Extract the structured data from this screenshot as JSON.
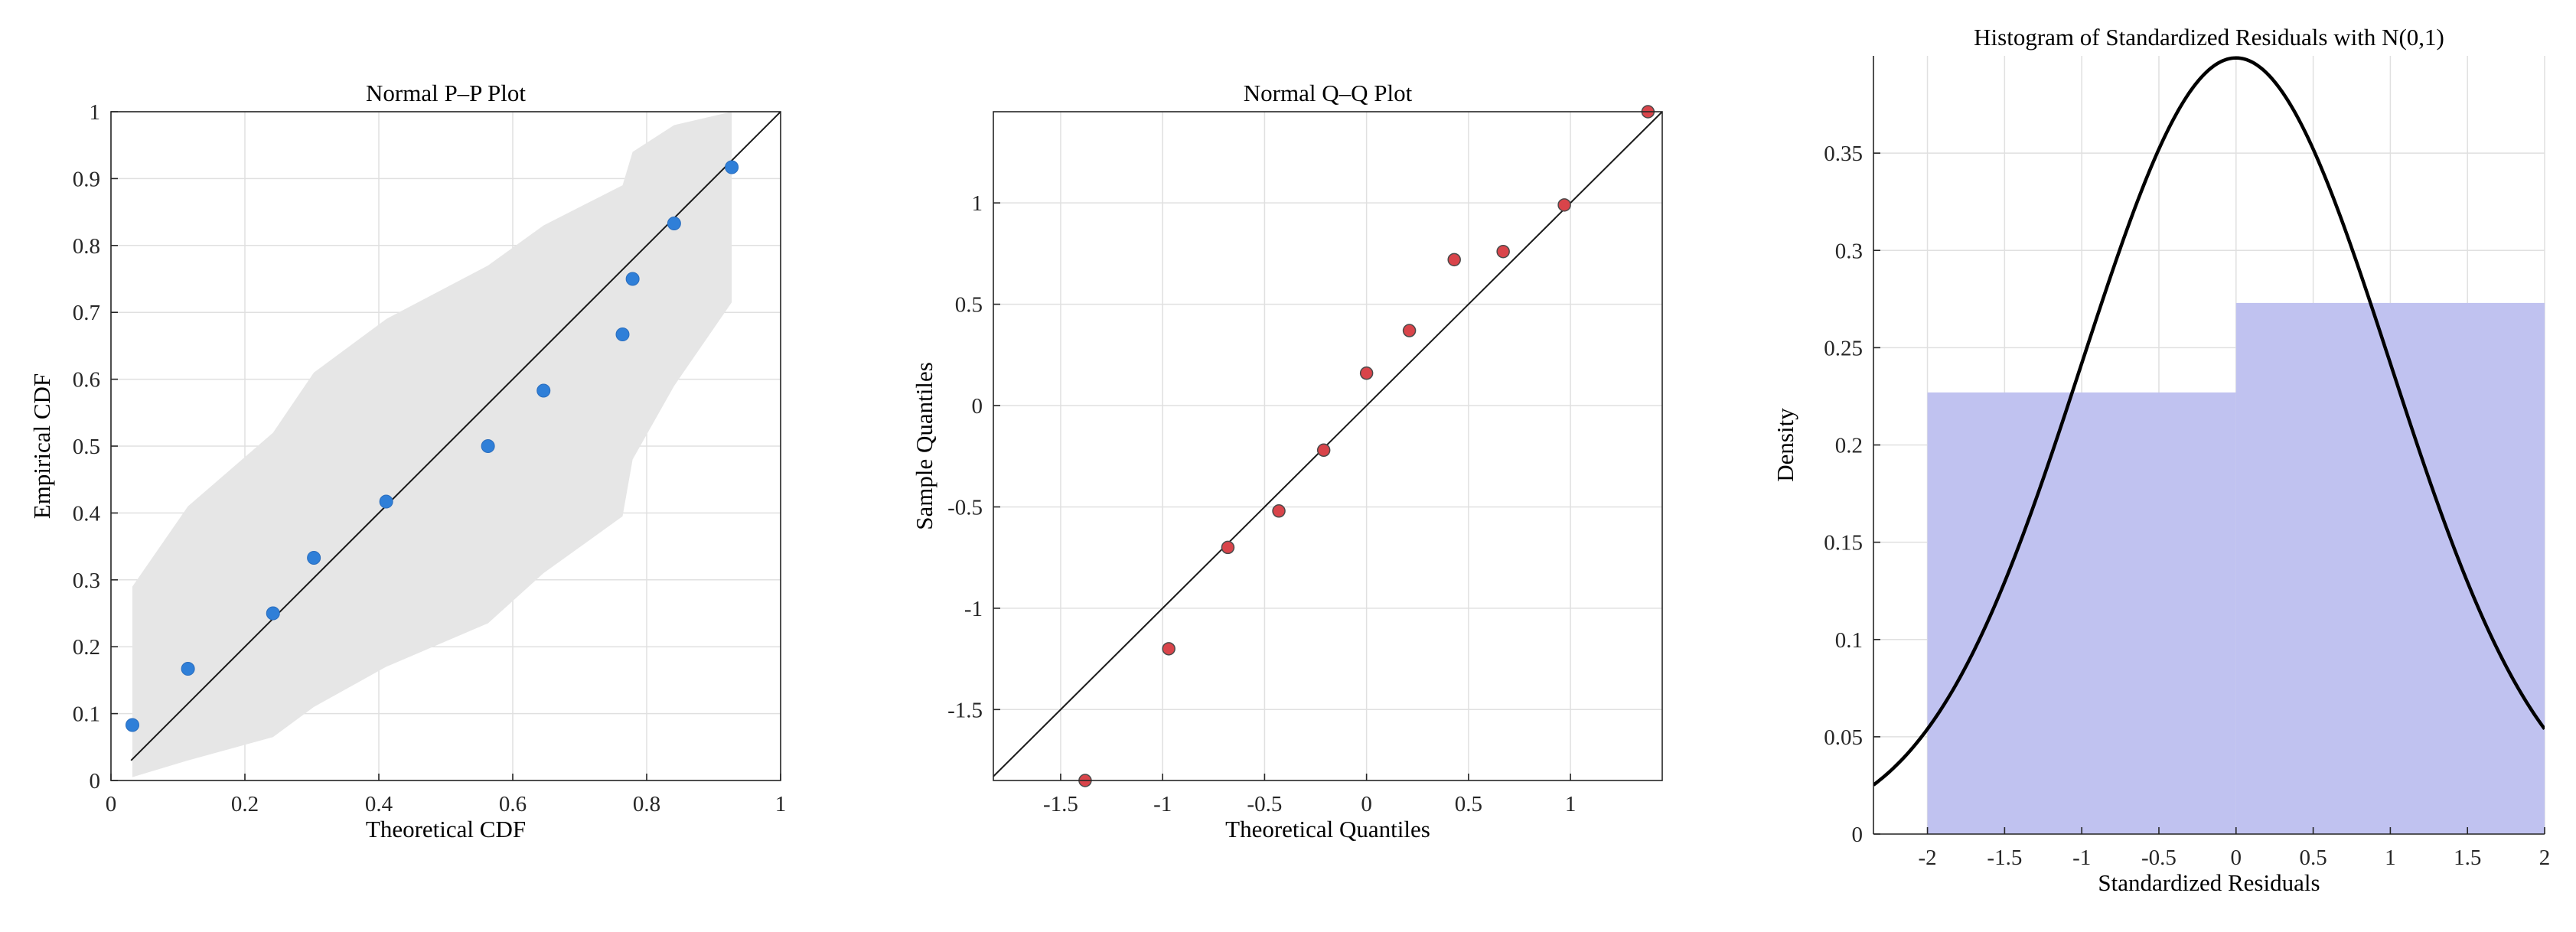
{
  "chart_data": [
    {
      "type": "scatter",
      "title": "Normal P–P Plot",
      "xlabel": "Theoretical CDF",
      "ylabel": "Empirical CDF",
      "xlim": [
        0,
        1
      ],
      "ylim": [
        0,
        1
      ],
      "xticks": [
        "0",
        "0.2",
        "0.4",
        "0.6",
        "0.8",
        "1"
      ],
      "yticks": [
        "0",
        "0.1",
        "0.2",
        "0.3",
        "0.4",
        "0.5",
        "0.6",
        "0.7",
        "0.8",
        "0.9",
        "1"
      ],
      "grid": true,
      "point_color": "#2f7fd8",
      "band_color": "#e6e6e6",
      "reference_line": {
        "x": [
          0.03,
          1.0
        ],
        "y": [
          0.03,
          1.0
        ]
      },
      "points": {
        "x": [
          0.032,
          0.115,
          0.242,
          0.303,
          0.411,
          0.563,
          0.646,
          0.764,
          0.779,
          0.841,
          0.927
        ],
        "y": [
          0.083,
          0.167,
          0.25,
          0.333,
          0.417,
          0.5,
          0.583,
          0.667,
          0.75,
          0.833,
          0.917
        ]
      },
      "band_upper": {
        "x": [
          0.032,
          0.115,
          0.242,
          0.303,
          0.411,
          0.563,
          0.646,
          0.764,
          0.779,
          0.841,
          0.927
        ],
        "y": [
          0.29,
          0.41,
          0.52,
          0.61,
          0.69,
          0.77,
          0.83,
          0.89,
          0.94,
          0.98,
          1.0
        ]
      },
      "band_lower": {
        "x": [
          0.032,
          0.115,
          0.242,
          0.303,
          0.411,
          0.563,
          0.646,
          0.764,
          0.779,
          0.841,
          0.927
        ],
        "y": [
          0.005,
          0.03,
          0.065,
          0.11,
          0.17,
          0.235,
          0.31,
          0.395,
          0.48,
          0.59,
          0.715
        ]
      }
    },
    {
      "type": "scatter",
      "title": "Normal Q–Q Plot",
      "xlabel": "Theoretical Quantiles",
      "ylabel": "Sample Quantiles",
      "xlim": [
        -1.83,
        1.45
      ],
      "ylim": [
        -1.85,
        1.45
      ],
      "xticks": [
        "-1.5",
        "-1",
        "-0.5",
        "0",
        "0.5",
        "1"
      ],
      "yticks": [
        "-1.5",
        "-1",
        "-0.5",
        "0",
        "0.5",
        "1"
      ],
      "grid": true,
      "point_color": "#d9444a",
      "reference_line": {
        "x": [
          -1.83,
          1.45
        ],
        "y": [
          -1.83,
          1.45
        ]
      },
      "points": {
        "x": [
          -1.38,
          -0.97,
          -0.68,
          -0.43,
          -0.21,
          0.0,
          0.21,
          0.43,
          0.67,
          0.97,
          1.38
        ],
        "y": [
          -1.85,
          -1.2,
          -0.7,
          -0.52,
          -0.22,
          0.16,
          0.37,
          0.72,
          0.76,
          0.99,
          1.45
        ]
      }
    },
    {
      "type": "bar",
      "title": "Histogram of Standardized Residuals with N(0,1)",
      "xlabel": "Standardized Residuals",
      "ylabel": "Density",
      "xlim": [
        -2.35,
        2.0
      ],
      "ylim": [
        0,
        0.4
      ],
      "xticks": [
        "-2",
        "-1.5",
        "-1",
        "-0.5",
        "0",
        "0.5",
        "1",
        "1.5",
        "2"
      ],
      "yticks": [
        "0",
        "0.05",
        "0.1",
        "0.15",
        "0.2",
        "0.25",
        "0.3",
        "0.35"
      ],
      "grid": true,
      "bar_color": "#c0c2f0",
      "bins": [
        {
          "start": -2.0,
          "end": 0.0,
          "density": 0.227
        },
        {
          "start": 0.0,
          "end": 2.0,
          "density": 0.273
        }
      ],
      "curve": {
        "name": "N(0,1)",
        "mean": 0,
        "sd": 1,
        "color": "#000000"
      }
    }
  ]
}
